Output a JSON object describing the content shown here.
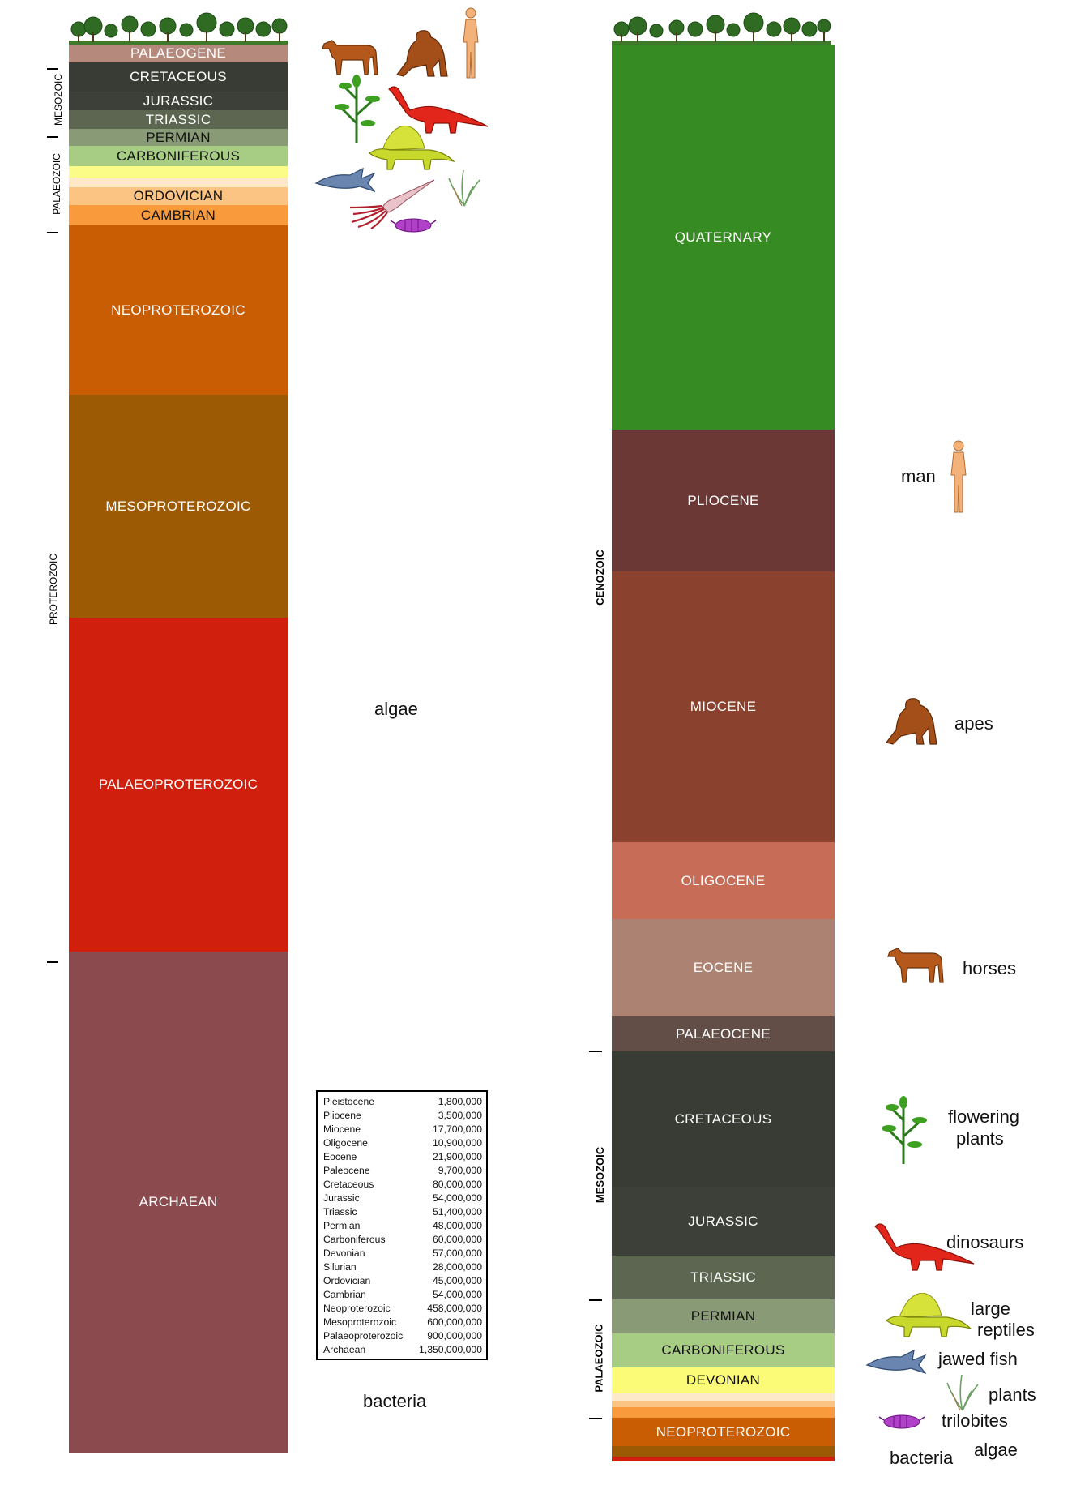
{
  "left_column": {
    "bands": [
      {
        "label": "PALAEOGENE",
        "color": "#B58A7C"
      },
      {
        "label": "CRETACEOUS",
        "color": "#393B35"
      },
      {
        "label": "JURASSIC",
        "color": "#3D4038"
      },
      {
        "label": "TRIASSIC",
        "color": "#5D6650"
      },
      {
        "label": "PERMIAN",
        "color": "#889A76"
      },
      {
        "label": "CARBONIFEROUS",
        "color": "#A7CC83"
      },
      {
        "label": "",
        "color": "#FBFB88"
      },
      {
        "label": "",
        "color": "#FDE8C8"
      },
      {
        "label": "ORDOVICIAN",
        "color": "#FBC483"
      },
      {
        "label": "CAMBRIAN",
        "color": "#F99A3D"
      },
      {
        "label": "NEOPROTEROZOIC",
        "color": "#C85D03"
      },
      {
        "label": "MESOPROTEROZOIC",
        "color": "#9C5A05"
      },
      {
        "label": "PALAEOPROTEROZOIC",
        "color": "#D01F0C"
      },
      {
        "label": "ARCHAEAN",
        "color": "#8B4B4E"
      }
    ],
    "era_labels": {
      "mesozoic": "MESOZOIC",
      "palaeozoic": "PALAEOZOIC",
      "proterozoic": "PROTEROZOIC"
    },
    "life_labels": {
      "algae": "algae",
      "bacteria": "bacteria"
    }
  },
  "right_column": {
    "bands": [
      {
        "label": "QUATERNARY",
        "color": "#368C22"
      },
      {
        "label": "PLIOCENE",
        "color": "#6C3835"
      },
      {
        "label": "MIOCENE",
        "color": "#8A412D"
      },
      {
        "label": "OLIGOCENE",
        "color": "#C76D57"
      },
      {
        "label": "EOCENE",
        "color": "#AC8373"
      },
      {
        "label": "PALAEOCENE",
        "color": "#624D47"
      },
      {
        "label": "CRETACEOUS",
        "color": "#393B35"
      },
      {
        "label": "JURASSIC",
        "color": "#3D4038"
      },
      {
        "label": "TRIASSIC",
        "color": "#5D6650"
      },
      {
        "label": "PERMIAN",
        "color": "#889A76"
      },
      {
        "label": "CARBONIFEROUS",
        "color": "#A7CC83"
      },
      {
        "label": "DEVONIAN",
        "color": "#FBFB77"
      },
      {
        "label": "",
        "color": "#FDE8C8"
      },
      {
        "label": "",
        "color": "#FBC483"
      },
      {
        "label": "",
        "color": "#F99A3D"
      },
      {
        "label": "NEOPROTEROZOIC",
        "color": "#C85D03"
      },
      {
        "label": "",
        "color": "#9C5A05"
      },
      {
        "label": "",
        "color": "#D01F0C"
      }
    ],
    "era_labels": {
      "cenozoic": "CENOZOIC",
      "mesozoic": "MESOZOIC",
      "palaeozoic": "PALAEOZOIC"
    },
    "life_labels": {
      "man": "man",
      "apes": "apes",
      "horses": "horses",
      "flowering_plants_1": "flowering",
      "flowering_plants_2": "plants",
      "dinosaurs": "dinosaurs",
      "large_reptiles_1": "large",
      "large_reptiles_2": "reptiles",
      "jawed_fish": "jawed fish",
      "plants": "plants",
      "trilobites": "trilobites",
      "bacteria": "bacteria",
      "algae": "algae"
    }
  },
  "legend": [
    {
      "name": "Pleistocene",
      "years": "1,800,000"
    },
    {
      "name": "Pliocene",
      "years": "3,500,000"
    },
    {
      "name": "Miocene",
      "years": "17,700,000"
    },
    {
      "name": "Oligocene",
      "years": "10,900,000"
    },
    {
      "name": "Eocene",
      "years": "21,900,000"
    },
    {
      "name": "Paleocene",
      "years": "9,700,000"
    },
    {
      "name": "Cretaceous",
      "years": "80,000,000"
    },
    {
      "name": "Jurassic",
      "years": "54,000,000"
    },
    {
      "name": "Triassic",
      "years": "51,400,000"
    },
    {
      "name": "Permian",
      "years": "48,000,000"
    },
    {
      "name": "Carboniferous",
      "years": "60,000,000"
    },
    {
      "name": "Devonian",
      "years": "57,000,000"
    },
    {
      "name": "Silurian",
      "years": "28,000,000"
    },
    {
      "name": "Ordovician",
      "years": "45,000,000"
    },
    {
      "name": "Cambrian",
      "years": "54,000,000"
    },
    {
      "name": "Neoproterozoic",
      "years": "458,000,000"
    },
    {
      "name": "Mesoproterozoic",
      "years": "600,000,000"
    },
    {
      "name": "Palaeoproterozoic",
      "years": "900,000,000"
    },
    {
      "name": "Archaean",
      "years": "1,350,000,000"
    }
  ],
  "icons": [
    "tree-icon",
    "horse-icon",
    "ape-icon",
    "man-icon",
    "plant-icon",
    "dinosaur-icon",
    "reptile-icon",
    "fish-icon",
    "squid-icon",
    "seaweed-icon",
    "trilobite-icon"
  ]
}
